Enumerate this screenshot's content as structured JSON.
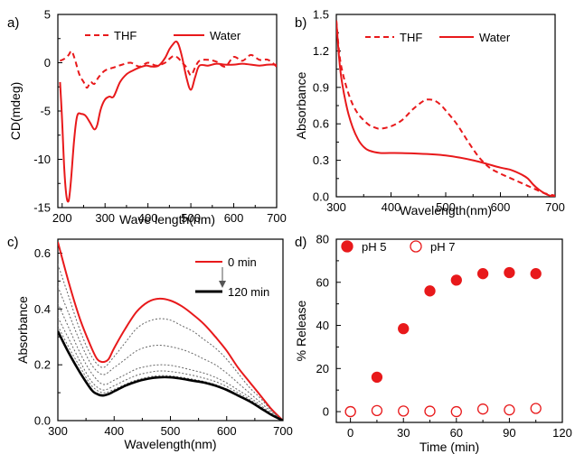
{
  "chart_data": [
    {
      "panel": "a)",
      "type": "line",
      "xlabel": "Wave length(nm)",
      "ylabel": "CD(mdeg)",
      "xlim": [
        190,
        700
      ],
      "ylim": [
        -15,
        5
      ],
      "xticks": [
        200,
        300,
        400,
        500,
        600,
        700
      ],
      "yticks": [
        -15,
        -10,
        -5,
        0,
        5
      ],
      "legend_position": "top",
      "series": [
        {
          "name": "THF",
          "style": "dashed",
          "color": "#e8191b",
          "x": [
            195,
            205,
            215,
            222,
            230,
            240,
            250,
            258,
            266,
            275,
            285,
            300,
            320,
            340,
            360,
            380,
            400,
            420,
            440,
            450,
            460,
            470,
            480,
            490,
            500,
            510,
            520,
            540,
            560,
            580,
            600,
            620,
            640,
            660,
            680,
            700
          ],
          "y": [
            0.2,
            0.4,
            0.8,
            1.2,
            0.3,
            -1.2,
            -2.0,
            -2.6,
            -2.0,
            -2.2,
            -1.5,
            -0.8,
            -0.5,
            -0.2,
            0.0,
            -0.4,
            0.0,
            -0.3,
            0.0,
            0.4,
            0.7,
            0.5,
            0.0,
            -0.5,
            -1.3,
            -0.5,
            0.2,
            0.3,
            0.1,
            -0.4,
            0.6,
            0.2,
            0.8,
            0.3,
            0.3,
            -0.4
          ]
        },
        {
          "name": "Water",
          "style": "solid",
          "color": "#e8191b",
          "x": [
            195,
            200,
            205,
            210,
            215,
            220,
            228,
            235,
            245,
            255,
            265,
            275,
            282,
            290,
            300,
            310,
            320,
            335,
            350,
            365,
            380,
            395,
            410,
            425,
            440,
            450,
            460,
            466,
            472,
            480,
            490,
            500,
            510,
            520,
            540,
            560,
            580,
            600,
            620,
            640,
            660,
            680,
            700
          ],
          "y": [
            -2.0,
            -6.0,
            -11.0,
            -13.8,
            -14.3,
            -12.5,
            -8.0,
            -5.5,
            -5.3,
            -5.5,
            -6.2,
            -6.9,
            -6.4,
            -4.8,
            -3.8,
            -3.5,
            -3.5,
            -2.0,
            -1.2,
            -0.8,
            -0.5,
            -0.3,
            -0.4,
            -0.3,
            0.5,
            1.4,
            2.0,
            2.2,
            1.8,
            0.5,
            -1.6,
            -2.8,
            -1.5,
            -0.3,
            -0.3,
            -0.1,
            -0.2,
            -0.2,
            -0.1,
            -0.2,
            -0.3,
            -0.2,
            -0.2
          ]
        }
      ]
    },
    {
      "panel": "b)",
      "type": "line",
      "xlabel": "Wavelength(nm)",
      "ylabel": "Absorbance",
      "xlim": [
        300,
        700
      ],
      "ylim": [
        0.0,
        1.5
      ],
      "xticks": [
        300,
        400,
        500,
        600,
        700
      ],
      "yticks": [
        0.0,
        0.3,
        0.6,
        0.9,
        1.2,
        1.5
      ],
      "legend_position": "top",
      "series": [
        {
          "name": "THF",
          "style": "dashed",
          "color": "#e8191b",
          "x": [
            300,
            305,
            310,
            320,
            330,
            340,
            350,
            360,
            370,
            380,
            400,
            420,
            440,
            460,
            470,
            480,
            490,
            500,
            520,
            540,
            560,
            580,
            600,
            620,
            640,
            660,
            680,
            700
          ],
          "y": [
            1.45,
            1.2,
            1.05,
            0.88,
            0.76,
            0.68,
            0.63,
            0.59,
            0.57,
            0.56,
            0.58,
            0.63,
            0.72,
            0.79,
            0.8,
            0.79,
            0.76,
            0.71,
            0.6,
            0.46,
            0.33,
            0.24,
            0.19,
            0.15,
            0.11,
            0.07,
            0.03,
            0.01
          ]
        },
        {
          "name": "Water",
          "style": "solid",
          "color": "#e8191b",
          "x": [
            300,
            305,
            310,
            320,
            330,
            340,
            350,
            360,
            380,
            400,
            450,
            500,
            550,
            600,
            620,
            640,
            650,
            660,
            670,
            680,
            690,
            700
          ],
          "y": [
            1.45,
            1.15,
            0.95,
            0.72,
            0.57,
            0.47,
            0.41,
            0.38,
            0.36,
            0.36,
            0.355,
            0.34,
            0.3,
            0.24,
            0.22,
            0.18,
            0.15,
            0.1,
            0.06,
            0.03,
            0.01,
            0.0
          ]
        }
      ]
    },
    {
      "panel": "c)",
      "type": "line",
      "xlabel": "Wavelength(nm)",
      "ylabel": "Absorbance",
      "xlim": [
        300,
        700
      ],
      "ylim": [
        0.0,
        0.65
      ],
      "xticks": [
        300,
        400,
        500,
        600,
        700
      ],
      "yticks": [
        0.0,
        0.2,
        0.4,
        0.6
      ],
      "legend_position": "top-right",
      "series": [
        {
          "name": "0 min",
          "style": "solid",
          "color": "#e8191b",
          "x": [
            300,
            320,
            340,
            360,
            370,
            380,
            390,
            400,
            420,
            440,
            460,
            480,
            500,
            520,
            540,
            560,
            580,
            600,
            620,
            640,
            660,
            680,
            700
          ],
          "y": [
            0.64,
            0.49,
            0.36,
            0.26,
            0.22,
            0.21,
            0.22,
            0.26,
            0.33,
            0.39,
            0.425,
            0.437,
            0.43,
            0.41,
            0.38,
            0.345,
            0.3,
            0.25,
            0.19,
            0.14,
            0.09,
            0.04,
            0.0
          ]
        },
        {
          "style": "dotted",
          "color": "#666666",
          "x": [
            300,
            320,
            340,
            360,
            380,
            400,
            420,
            440,
            460,
            480,
            500,
            520,
            540,
            560,
            580,
            600,
            620,
            640,
            660,
            680,
            700
          ],
          "y": [
            0.56,
            0.44,
            0.32,
            0.23,
            0.19,
            0.23,
            0.28,
            0.33,
            0.355,
            0.365,
            0.36,
            0.34,
            0.32,
            0.29,
            0.26,
            0.22,
            0.17,
            0.12,
            0.08,
            0.035,
            0.0
          ]
        },
        {
          "style": "dotted",
          "color": "#666666",
          "x": [
            300,
            320,
            340,
            360,
            380,
            400,
            420,
            440,
            460,
            480,
            500,
            520,
            540,
            560,
            580,
            600,
            620,
            640,
            660,
            680,
            700
          ],
          "y": [
            0.48,
            0.38,
            0.28,
            0.2,
            0.165,
            0.19,
            0.22,
            0.25,
            0.265,
            0.27,
            0.265,
            0.255,
            0.24,
            0.22,
            0.2,
            0.17,
            0.135,
            0.1,
            0.065,
            0.03,
            0.0
          ]
        },
        {
          "style": "dotted",
          "color": "#666666",
          "x": [
            300,
            320,
            340,
            360,
            380,
            400,
            420,
            440,
            460,
            480,
            500,
            520,
            540,
            560,
            580,
            600,
            620,
            640,
            660,
            680,
            700
          ],
          "y": [
            0.42,
            0.33,
            0.24,
            0.17,
            0.13,
            0.145,
            0.165,
            0.185,
            0.195,
            0.2,
            0.198,
            0.19,
            0.18,
            0.17,
            0.155,
            0.135,
            0.11,
            0.085,
            0.055,
            0.025,
            0.0
          ]
        },
        {
          "style": "dotted",
          "color": "#666666",
          "x": [
            300,
            320,
            340,
            360,
            380,
            400,
            420,
            440,
            460,
            480,
            500,
            520,
            540,
            560,
            580,
            600,
            620,
            640,
            660,
            680,
            700
          ],
          "y": [
            0.37,
            0.29,
            0.21,
            0.14,
            0.11,
            0.125,
            0.145,
            0.162,
            0.172,
            0.178,
            0.176,
            0.17,
            0.162,
            0.152,
            0.14,
            0.122,
            0.1,
            0.077,
            0.05,
            0.022,
            0.0
          ]
        },
        {
          "style": "dotted",
          "color": "#666666",
          "x": [
            300,
            320,
            340,
            360,
            380,
            400,
            420,
            440,
            460,
            480,
            500,
            520,
            540,
            560,
            580,
            600,
            620,
            640,
            660,
            680,
            700
          ],
          "y": [
            0.34,
            0.26,
            0.19,
            0.125,
            0.1,
            0.112,
            0.13,
            0.146,
            0.156,
            0.161,
            0.16,
            0.155,
            0.148,
            0.14,
            0.129,
            0.113,
            0.093,
            0.071,
            0.046,
            0.02,
            0.0
          ]
        },
        {
          "name": "120 min",
          "style": "solid",
          "color": "#000000",
          "x": [
            300,
            320,
            340,
            360,
            370,
            380,
            390,
            400,
            420,
            440,
            460,
            480,
            500,
            520,
            540,
            560,
            580,
            600,
            620,
            640,
            660,
            680,
            700
          ],
          "y": [
            0.32,
            0.24,
            0.17,
            0.11,
            0.095,
            0.09,
            0.095,
            0.105,
            0.125,
            0.14,
            0.15,
            0.155,
            0.155,
            0.15,
            0.143,
            0.136,
            0.125,
            0.11,
            0.09,
            0.07,
            0.045,
            0.02,
            0.0
          ]
        }
      ],
      "annotation": "arrow from 0 min to 120 min"
    },
    {
      "panel": "d)",
      "type": "scatter",
      "xlabel": "Time (min)",
      "ylabel": "% Release",
      "xlim": [
        -8,
        120
      ],
      "ylim": [
        -5,
        80
      ],
      "xticks": [
        0,
        30,
        60,
        90,
        120
      ],
      "yticks": [
        0,
        20,
        40,
        60,
        80
      ],
      "legend_position": "top",
      "series": [
        {
          "name": "pH 5",
          "marker": "filled-circle",
          "color": "#e8191b",
          "x": [
            0,
            15,
            30,
            45,
            60,
            75,
            90,
            105
          ],
          "y": [
            0,
            16,
            38.5,
            56,
            61,
            64,
            64.5,
            64
          ]
        },
        {
          "name": "pH 7",
          "marker": "open-circle",
          "color": "#e8191b",
          "x": [
            0,
            15,
            30,
            45,
            60,
            75,
            90,
            105
          ],
          "y": [
            0,
            0.5,
            0.3,
            0.2,
            0,
            1.2,
            0.8,
            1.5
          ]
        }
      ]
    }
  ]
}
